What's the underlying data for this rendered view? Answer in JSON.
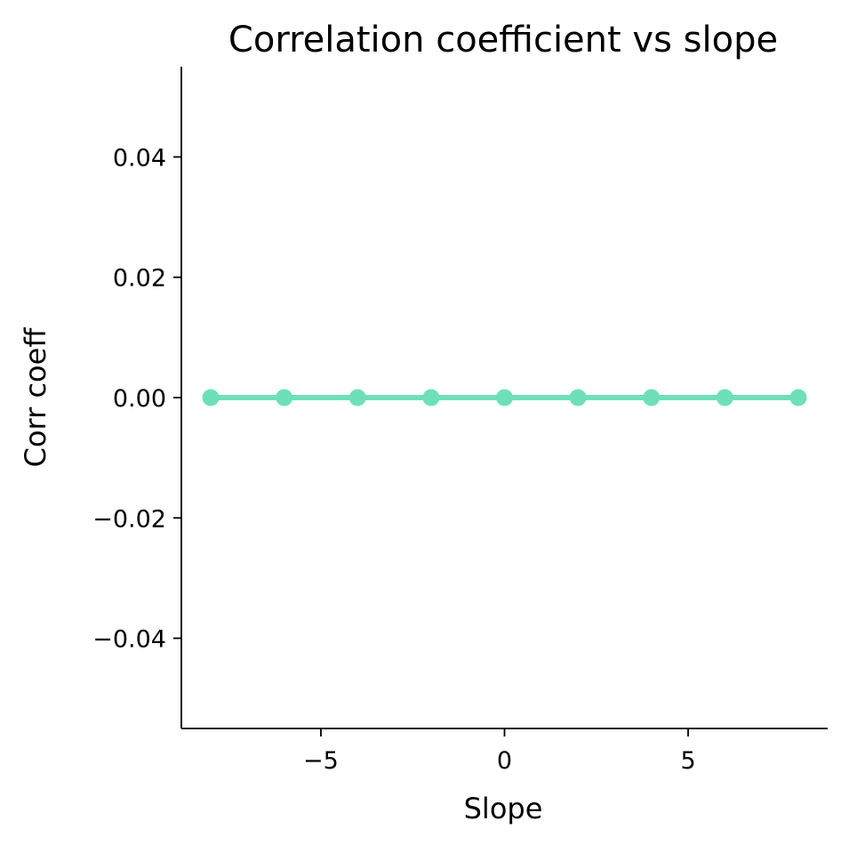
{
  "chart_data": {
    "type": "line",
    "title": "Correlation coefficient vs slope",
    "xlabel": "Slope",
    "ylabel": "Corr coeff",
    "xlim": [
      -8.8,
      8.8
    ],
    "ylim": [
      -0.055,
      0.055
    ],
    "x_ticks": [
      -5,
      0,
      5
    ],
    "x_tick_labels": [
      "−5",
      "0",
      "5"
    ],
    "y_ticks": [
      -0.04,
      -0.02,
      0.0,
      0.02,
      0.04
    ],
    "y_tick_labels": [
      "−0.04",
      "−0.02",
      "0.00",
      "0.02",
      "0.04"
    ],
    "grid": false,
    "series": [
      {
        "color": "#6ee0b8",
        "marker": "circle",
        "x": [
          -8,
          -6,
          -4,
          -2,
          0,
          2,
          4,
          6,
          8
        ],
        "y": [
          0,
          0,
          0,
          0,
          0,
          0,
          0,
          0,
          0
        ]
      }
    ]
  }
}
